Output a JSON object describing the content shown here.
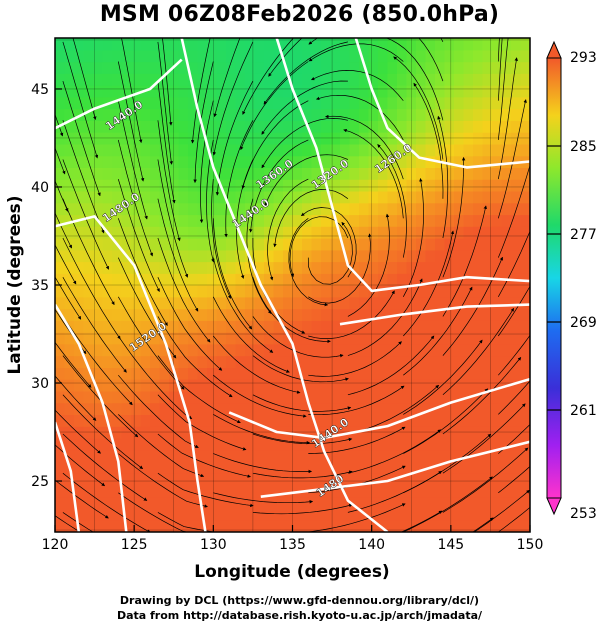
{
  "title": "MSM 06Z08Feb2026 (850.0hPa)",
  "credits": {
    "line1": "Drawing by DCL (https://www.gfd-dennou.org/library/dcl/)",
    "line2": "Data from http://database.rish.kyoto-u.ac.jp/arch/jmadata/"
  },
  "chart_data": {
    "type": "heatmap",
    "title": "MSM 06Z08Feb2026 (850.0hPa)",
    "xlabel": "Longitude (degrees)",
    "ylabel": "Latitude  (degrees)",
    "xlim": [
      120,
      150
    ],
    "ylim": [
      22.4,
      47.6
    ],
    "xticks": [
      "120",
      "125",
      "130",
      "135",
      "140",
      "145",
      "150"
    ],
    "yticks": [
      "25",
      "30",
      "35",
      "40",
      "45"
    ],
    "grid": true,
    "colorbar": {
      "min": 253,
      "max": 293,
      "ticks": [
        "253",
        "261",
        "269",
        "277",
        "285",
        "293"
      ],
      "extend": "both"
    },
    "contours": {
      "color": "#ffffff",
      "levels": [
        {
          "label": "1260.0",
          "at": [
            141.5,
            41.3
          ]
        },
        {
          "label": "1320.0",
          "at": [
            137.5,
            40.5
          ]
        },
        {
          "label": "1360.0",
          "at": [
            134.0,
            40.5
          ]
        },
        {
          "label": "1440.0",
          "at": [
            124.5,
            43.5
          ]
        },
        {
          "label": "1440.0",
          "at": [
            132.5,
            38.5
          ]
        },
        {
          "label": "1480.0",
          "at": [
            124.3,
            38.8
          ]
        },
        {
          "label": "1520.0",
          "at": [
            126.0,
            32.2
          ]
        },
        {
          "label": "1440.0",
          "at": [
            137.5,
            27.3
          ]
        },
        {
          "label": "1480",
          "at": [
            137.5,
            24.6
          ]
        }
      ]
    },
    "streamlines": "wind vectors",
    "coastline": true
  }
}
